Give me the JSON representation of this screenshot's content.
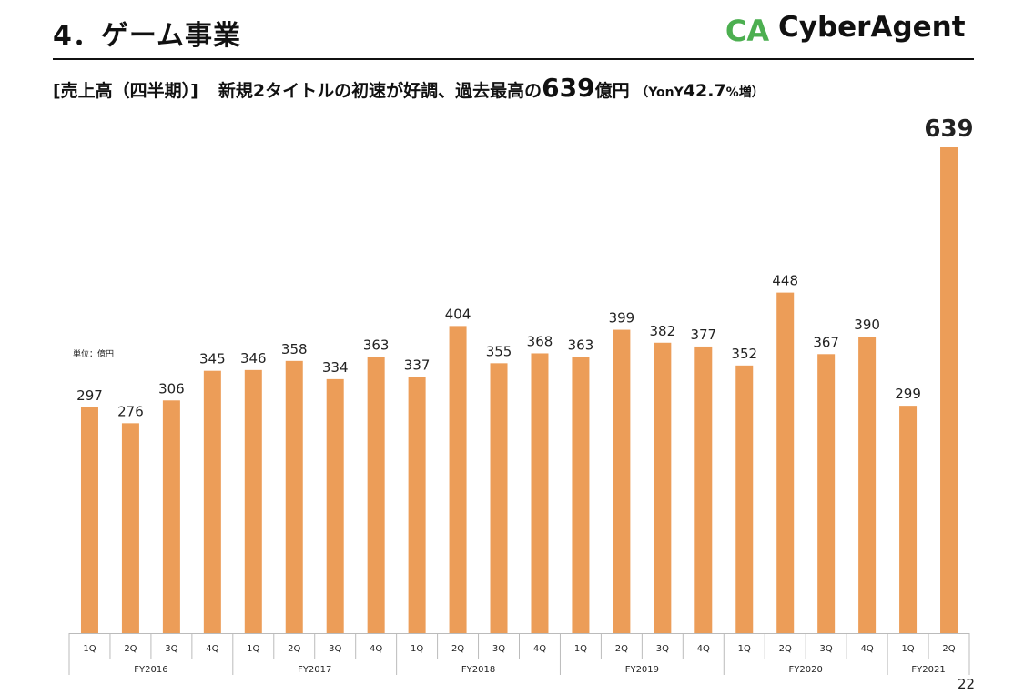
{
  "header": {
    "title": "4．ゲーム事業",
    "logo_text": "CyberAgent",
    "logo_mark": "CA"
  },
  "subtitle": {
    "bracket": "[売上高（四半期）]",
    "text_a": "新規2タイトルの初速が好調、過去最高の",
    "highlight": "639",
    "text_b": "億円",
    "yoy_a": "（YonY",
    "yoy_value": "42.7",
    "yoy_b": "%増）"
  },
  "unit_label": "単位：億円",
  "page_number": "22",
  "colors": {
    "bar": "#EC9D58",
    "text": "#111111",
    "logo_green": "#4CAF50"
  },
  "chart_data": {
    "type": "bar",
    "title": "",
    "xlabel": "",
    "ylabel": "",
    "ylim": [
      0,
      700
    ],
    "categories": [
      "1Q",
      "2Q",
      "3Q",
      "4Q",
      "1Q",
      "2Q",
      "3Q",
      "4Q",
      "1Q",
      "2Q",
      "3Q",
      "4Q",
      "1Q",
      "2Q",
      "3Q",
      "4Q",
      "1Q",
      "2Q",
      "3Q",
      "4Q",
      "1Q",
      "2Q"
    ],
    "values": [
      297,
      276,
      306,
      345,
      346,
      358,
      334,
      363,
      337,
      404,
      355,
      368,
      363,
      399,
      382,
      377,
      352,
      448,
      367,
      390,
      299,
      639
    ],
    "groups": [
      {
        "label": "FY2016",
        "count": 4
      },
      {
        "label": "FY2017",
        "count": 4
      },
      {
        "label": "FY2018",
        "count": 4
      },
      {
        "label": "FY2019",
        "count": 4
      },
      {
        "label": "FY2020",
        "count": 4
      },
      {
        "label": "FY2021",
        "count": 2
      }
    ]
  }
}
